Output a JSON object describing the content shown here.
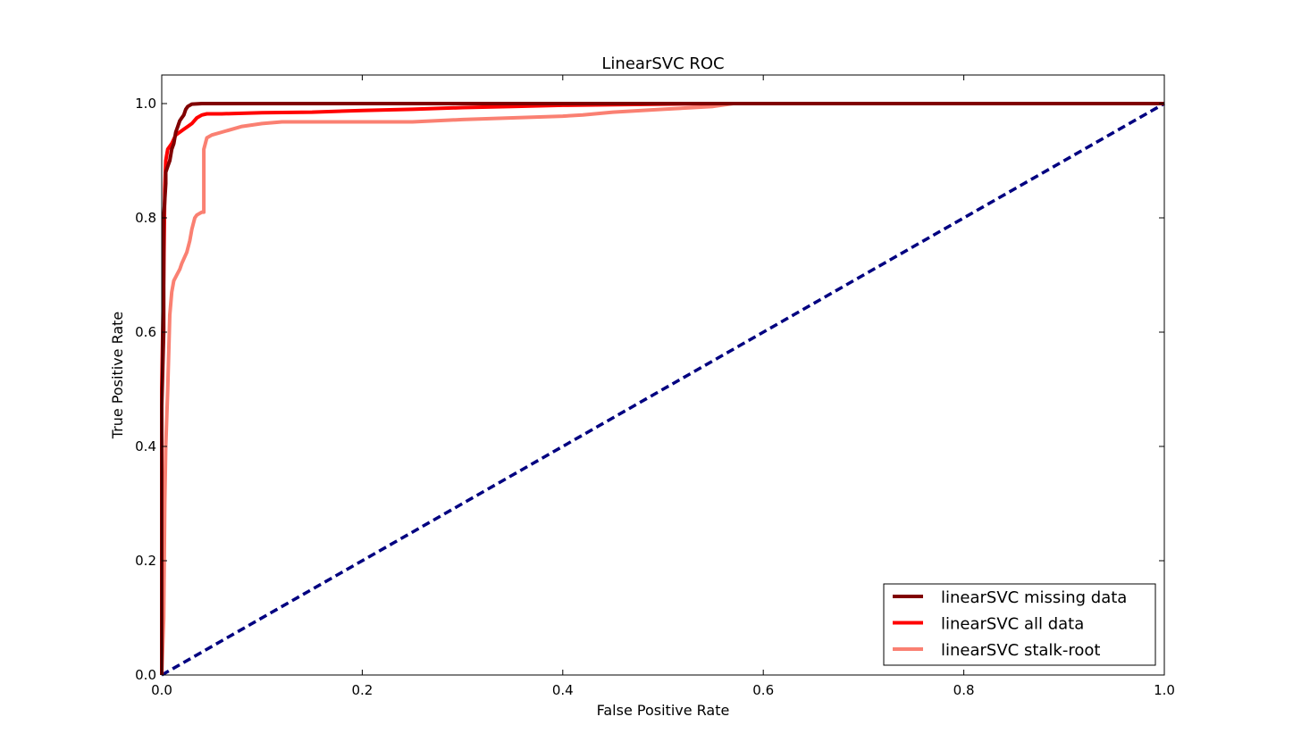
{
  "chart_data": {
    "type": "line",
    "title": "LinearSVC ROC",
    "xlabel": "False Positive Rate",
    "ylabel": "True Positive Rate",
    "xlim": [
      0.0,
      1.0
    ],
    "ylim": [
      0.0,
      1.05
    ],
    "xticks": [
      0.0,
      0.2,
      0.4,
      0.6,
      0.8,
      1.0
    ],
    "yticks": [
      0.0,
      0.2,
      0.4,
      0.6,
      0.8,
      1.0
    ],
    "xtick_labels": [
      "0.0",
      "0.2",
      "0.4",
      "0.6",
      "0.8",
      "1.0"
    ],
    "ytick_labels": [
      "0.0",
      "0.2",
      "0.4",
      "0.6",
      "0.8",
      "1.0"
    ],
    "grid": false,
    "legend_position": "lower-right",
    "series": [
      {
        "name": "linearSVC missing data",
        "color": "#800000",
        "style": "solid",
        "x": [
          0.0,
          0.0,
          0.002,
          0.002,
          0.004,
          0.004,
          0.006,
          0.008,
          0.01,
          0.012,
          0.014,
          0.016,
          0.018,
          0.02,
          0.022,
          0.024,
          0.026,
          0.03,
          0.04,
          0.1,
          0.3,
          0.5,
          0.7,
          1.0
        ],
        "y": [
          0.0,
          0.47,
          0.6,
          0.8,
          0.86,
          0.88,
          0.89,
          0.9,
          0.92,
          0.93,
          0.95,
          0.96,
          0.97,
          0.975,
          0.98,
          0.99,
          0.995,
          0.999,
          1.0,
          1.0,
          1.0,
          1.0,
          1.0,
          1.0
        ]
      },
      {
        "name": "linearSVC all data",
        "color": "#ff0000",
        "style": "solid",
        "x": [
          0.0,
          0.0,
          0.002,
          0.003,
          0.004,
          0.006,
          0.01,
          0.014,
          0.018,
          0.022,
          0.026,
          0.03,
          0.035,
          0.04,
          0.045,
          0.06,
          0.1,
          0.15,
          0.2,
          0.25,
          0.3,
          0.35,
          0.4,
          0.5,
          0.56,
          0.6,
          1.0
        ],
        "y": [
          0.0,
          0.5,
          0.7,
          0.85,
          0.9,
          0.92,
          0.93,
          0.945,
          0.95,
          0.955,
          0.96,
          0.965,
          0.975,
          0.98,
          0.982,
          0.982,
          0.984,
          0.985,
          0.988,
          0.99,
          0.993,
          0.995,
          0.997,
          0.999,
          1.0,
          1.0,
          1.0
        ]
      },
      {
        "name": "linearSVC stalk-root",
        "color": "#fa8072",
        "style": "solid",
        "x": [
          0.0,
          0.002,
          0.003,
          0.004,
          0.006,
          0.008,
          0.01,
          0.012,
          0.015,
          0.018,
          0.02,
          0.025,
          0.028,
          0.03,
          0.033,
          0.035,
          0.04,
          0.042,
          0.042,
          0.045,
          0.05,
          0.06,
          0.07,
          0.08,
          0.1,
          0.12,
          0.15,
          0.2,
          0.25,
          0.3,
          0.35,
          0.4,
          0.42,
          0.45,
          0.5,
          0.55,
          0.57,
          0.6,
          0.8,
          1.0
        ],
        "y": [
          0.0,
          0.1,
          0.3,
          0.4,
          0.5,
          0.63,
          0.67,
          0.69,
          0.7,
          0.71,
          0.72,
          0.74,
          0.76,
          0.78,
          0.8,
          0.805,
          0.81,
          0.81,
          0.92,
          0.94,
          0.945,
          0.95,
          0.955,
          0.96,
          0.965,
          0.968,
          0.968,
          0.968,
          0.968,
          0.972,
          0.975,
          0.978,
          0.98,
          0.985,
          0.99,
          0.995,
          1.0,
          1.0,
          1.0,
          1.0
        ]
      },
      {
        "name": "",
        "color": "#000080",
        "style": "dashed",
        "x": [
          0.0,
          1.0
        ],
        "y": [
          0.0,
          1.0
        ]
      }
    ]
  }
}
